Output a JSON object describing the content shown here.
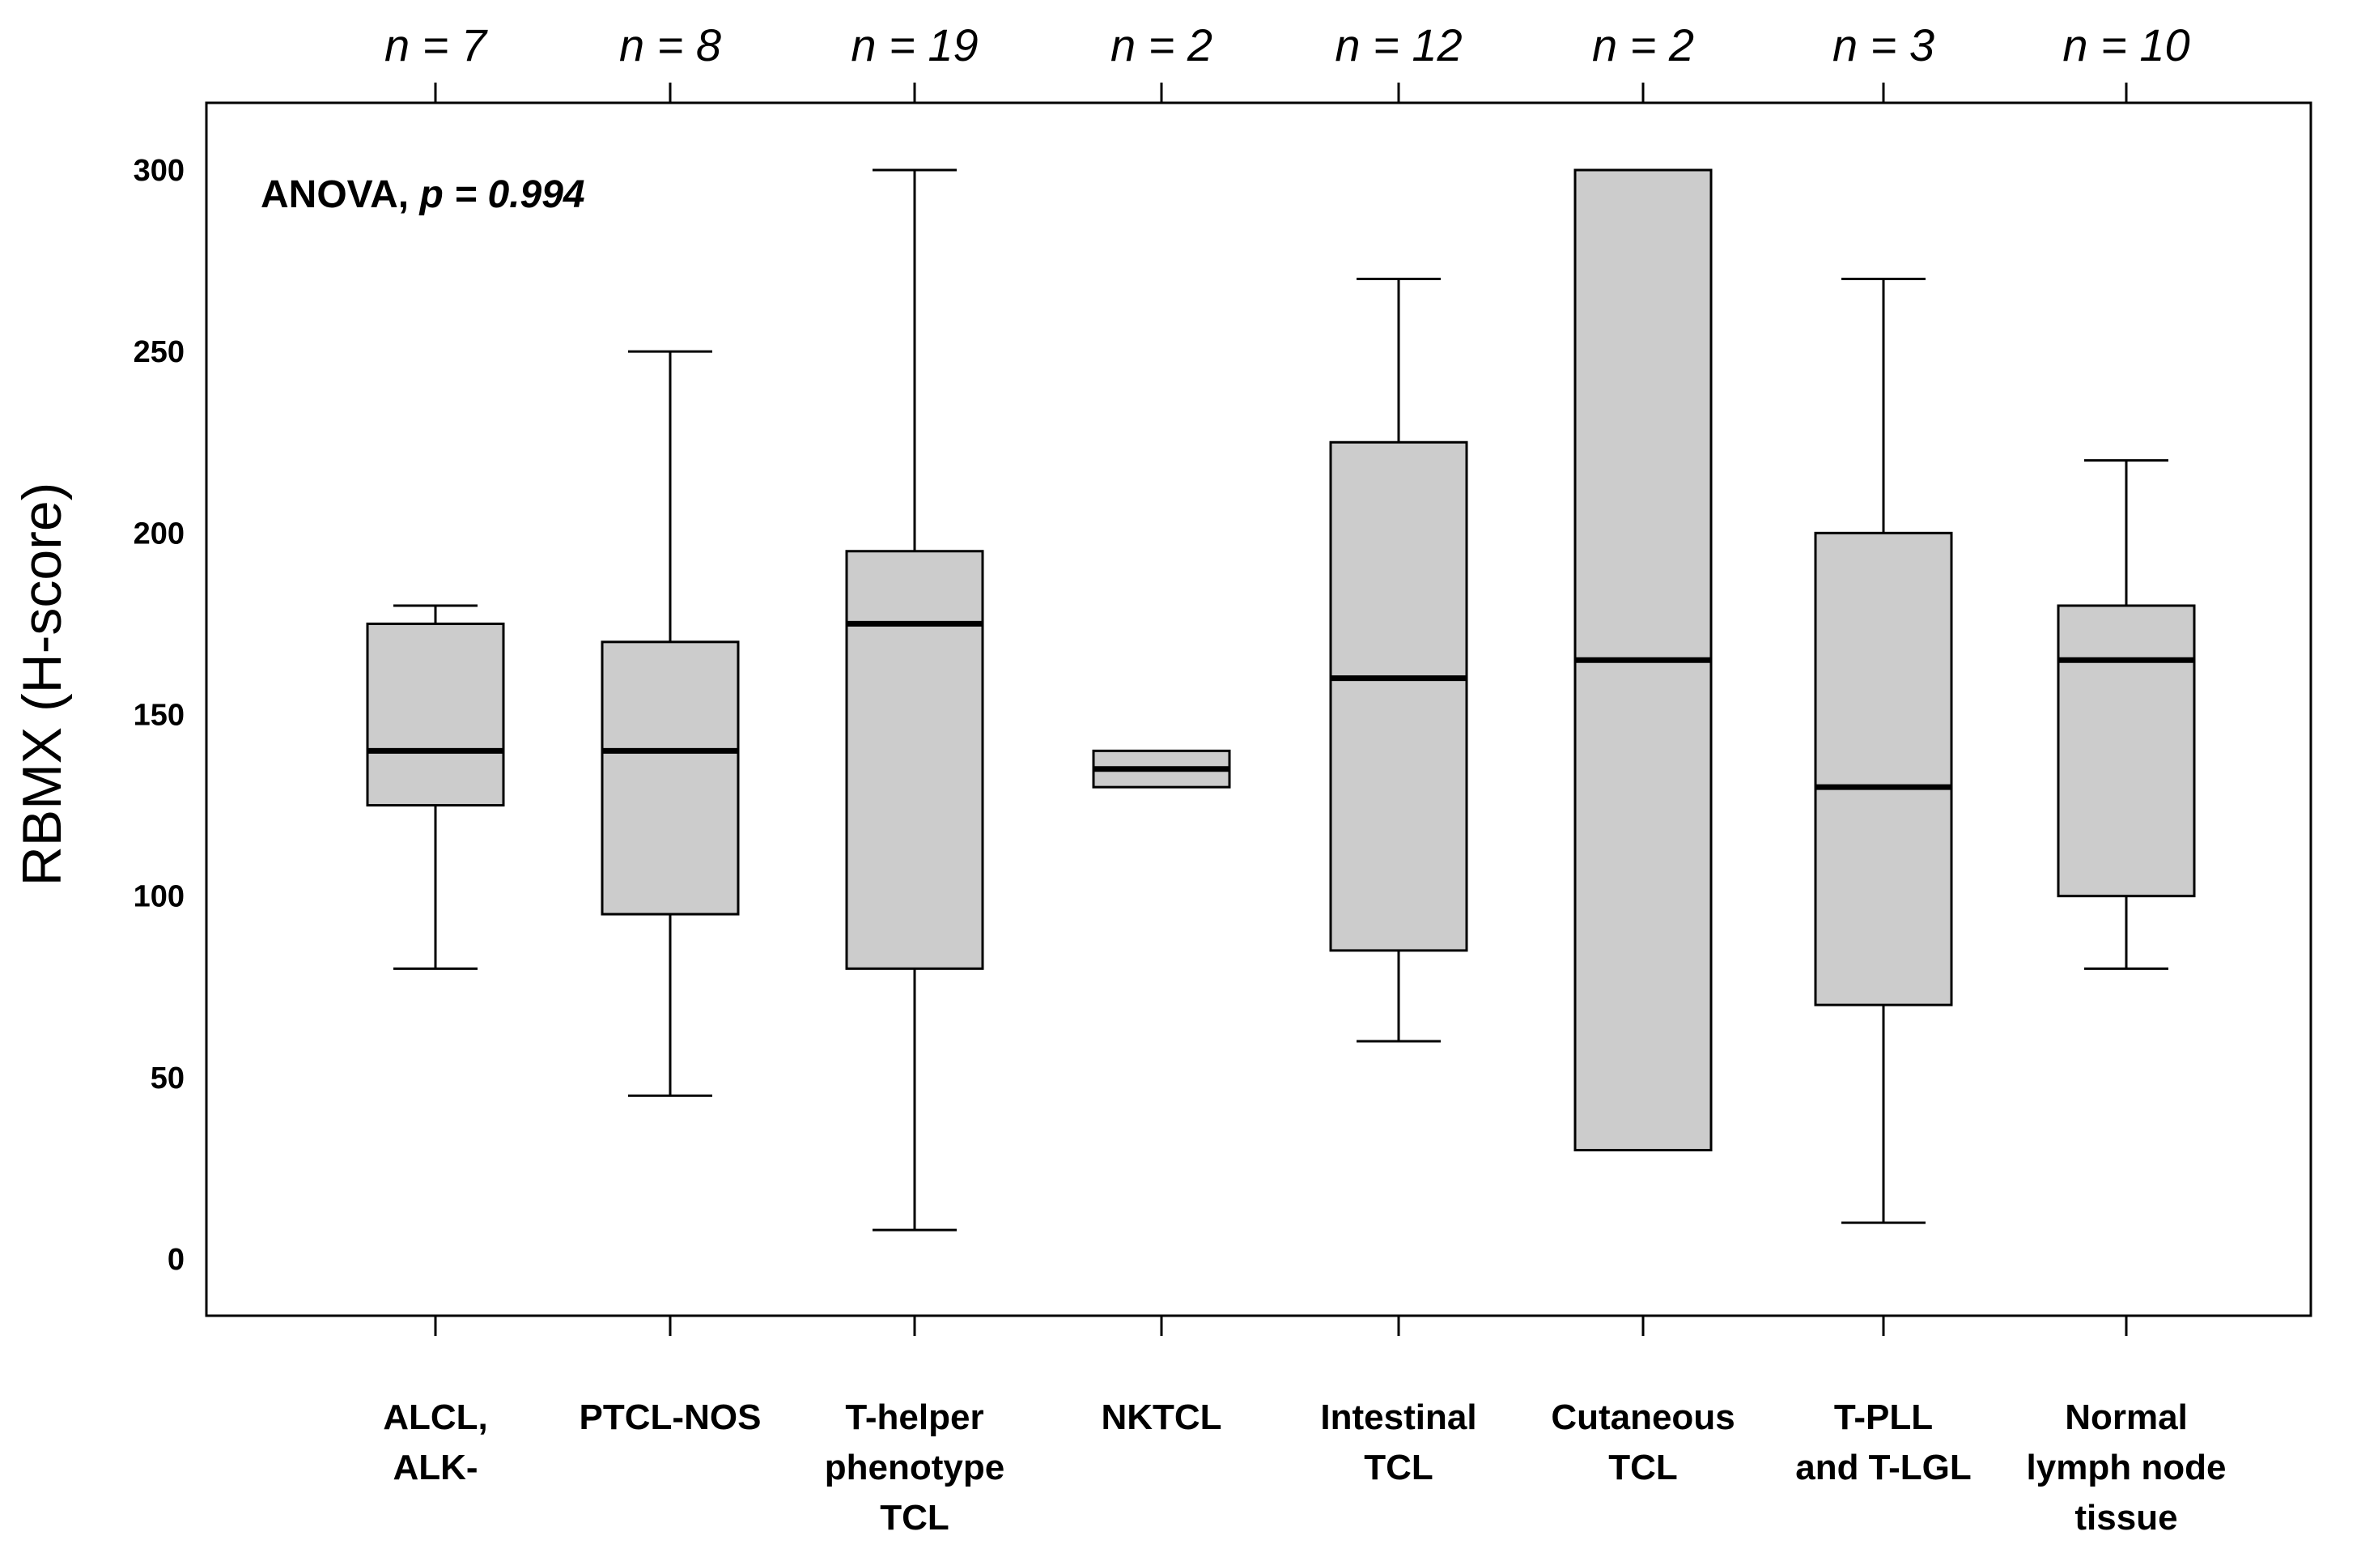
{
  "chart_data": {
    "type": "boxplot",
    "ylabel": "RBMX (H-score)",
    "xlabel": "",
    "ylim": [
      -15,
      320
    ],
    "yticks": [
      "0",
      "50",
      "100",
      "150",
      "200",
      "250",
      "300"
    ],
    "annotation": {
      "prefix": "ANOVA, ",
      "italic": "p = 0.994"
    },
    "categories": [
      {
        "name": "ALCL, ALK-",
        "lines": [
          "ALCL,",
          "ALK-"
        ],
        "n": "n = 7",
        "min": 80,
        "q1": 125,
        "median": 140,
        "q3": 175,
        "max": 180
      },
      {
        "name": "PTCL-NOS",
        "lines": [
          "PTCL-NOS"
        ],
        "n": "n = 8",
        "min": 45,
        "q1": 95,
        "median": 140,
        "q3": 170,
        "max": 250
      },
      {
        "name": "T-helper phenotype TCL",
        "lines": [
          "T-helper",
          "phenotype",
          "TCL"
        ],
        "n": "n = 19",
        "min": 8,
        "q1": 80,
        "median": 175,
        "q3": 195,
        "max": 300
      },
      {
        "name": "NKTCL",
        "lines": [
          "NKTCL"
        ],
        "n": "n = 2",
        "min": 130,
        "q1": 130,
        "median": 135,
        "q3": 140,
        "max": 140
      },
      {
        "name": "Intestinal TCL",
        "lines": [
          "Intestinal",
          "TCL"
        ],
        "n": "n = 12",
        "min": 60,
        "q1": 85,
        "median": 160,
        "q3": 225,
        "max": 270
      },
      {
        "name": "Cutaneous TCL",
        "lines": [
          "Cutaneous",
          "TCL"
        ],
        "n": "n = 2",
        "min": 30,
        "q1": 30,
        "median": 165,
        "q3": 300,
        "max": 300
      },
      {
        "name": "T-PLL and T-LGL",
        "lines": [
          "T-PLL",
          "and T-LGL"
        ],
        "n": "n = 3",
        "min": 10,
        "q1": 70,
        "median": 130,
        "q3": 200,
        "max": 270
      },
      {
        "name": "Normal lymph node tissue",
        "lines": [
          "Normal",
          "lymph node",
          "tissue"
        ],
        "n": "n = 10",
        "min": 80,
        "q1": 100,
        "median": 165,
        "q3": 180,
        "max": 220
      }
    ],
    "colors": {
      "box_fill": "#cccccc",
      "line": "#000000",
      "background": "#ffffff"
    }
  }
}
